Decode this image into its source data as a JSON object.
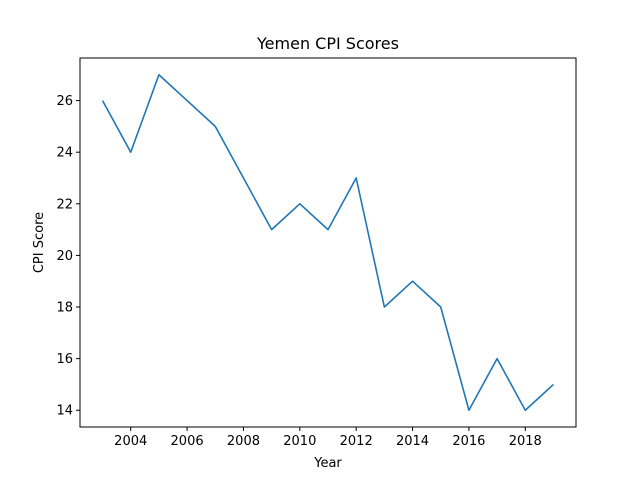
{
  "chart_data": {
    "type": "line",
    "title": "Yemen CPI Scores",
    "xlabel": "Year",
    "ylabel": "CPI Score",
    "x": [
      2003,
      2004,
      2005,
      2006,
      2007,
      2008,
      2009,
      2010,
      2011,
      2012,
      2013,
      2014,
      2015,
      2016,
      2017,
      2018,
      2019
    ],
    "series": [
      {
        "values": [
          26,
          24,
          27,
          26,
          25,
          23,
          21,
          22,
          21,
          23,
          18,
          19,
          18,
          14,
          16,
          14,
          15
        ],
        "color": "#1f77b4"
      }
    ],
    "xlim": [
      2002.2,
      2019.8
    ],
    "ylim": [
      13.35,
      27.65
    ],
    "xticks": [
      2004,
      2006,
      2008,
      2010,
      2012,
      2014,
      2016,
      2018
    ],
    "yticks": [
      14,
      16,
      18,
      20,
      22,
      24,
      26
    ],
    "grid": false,
    "legend": "none"
  }
}
